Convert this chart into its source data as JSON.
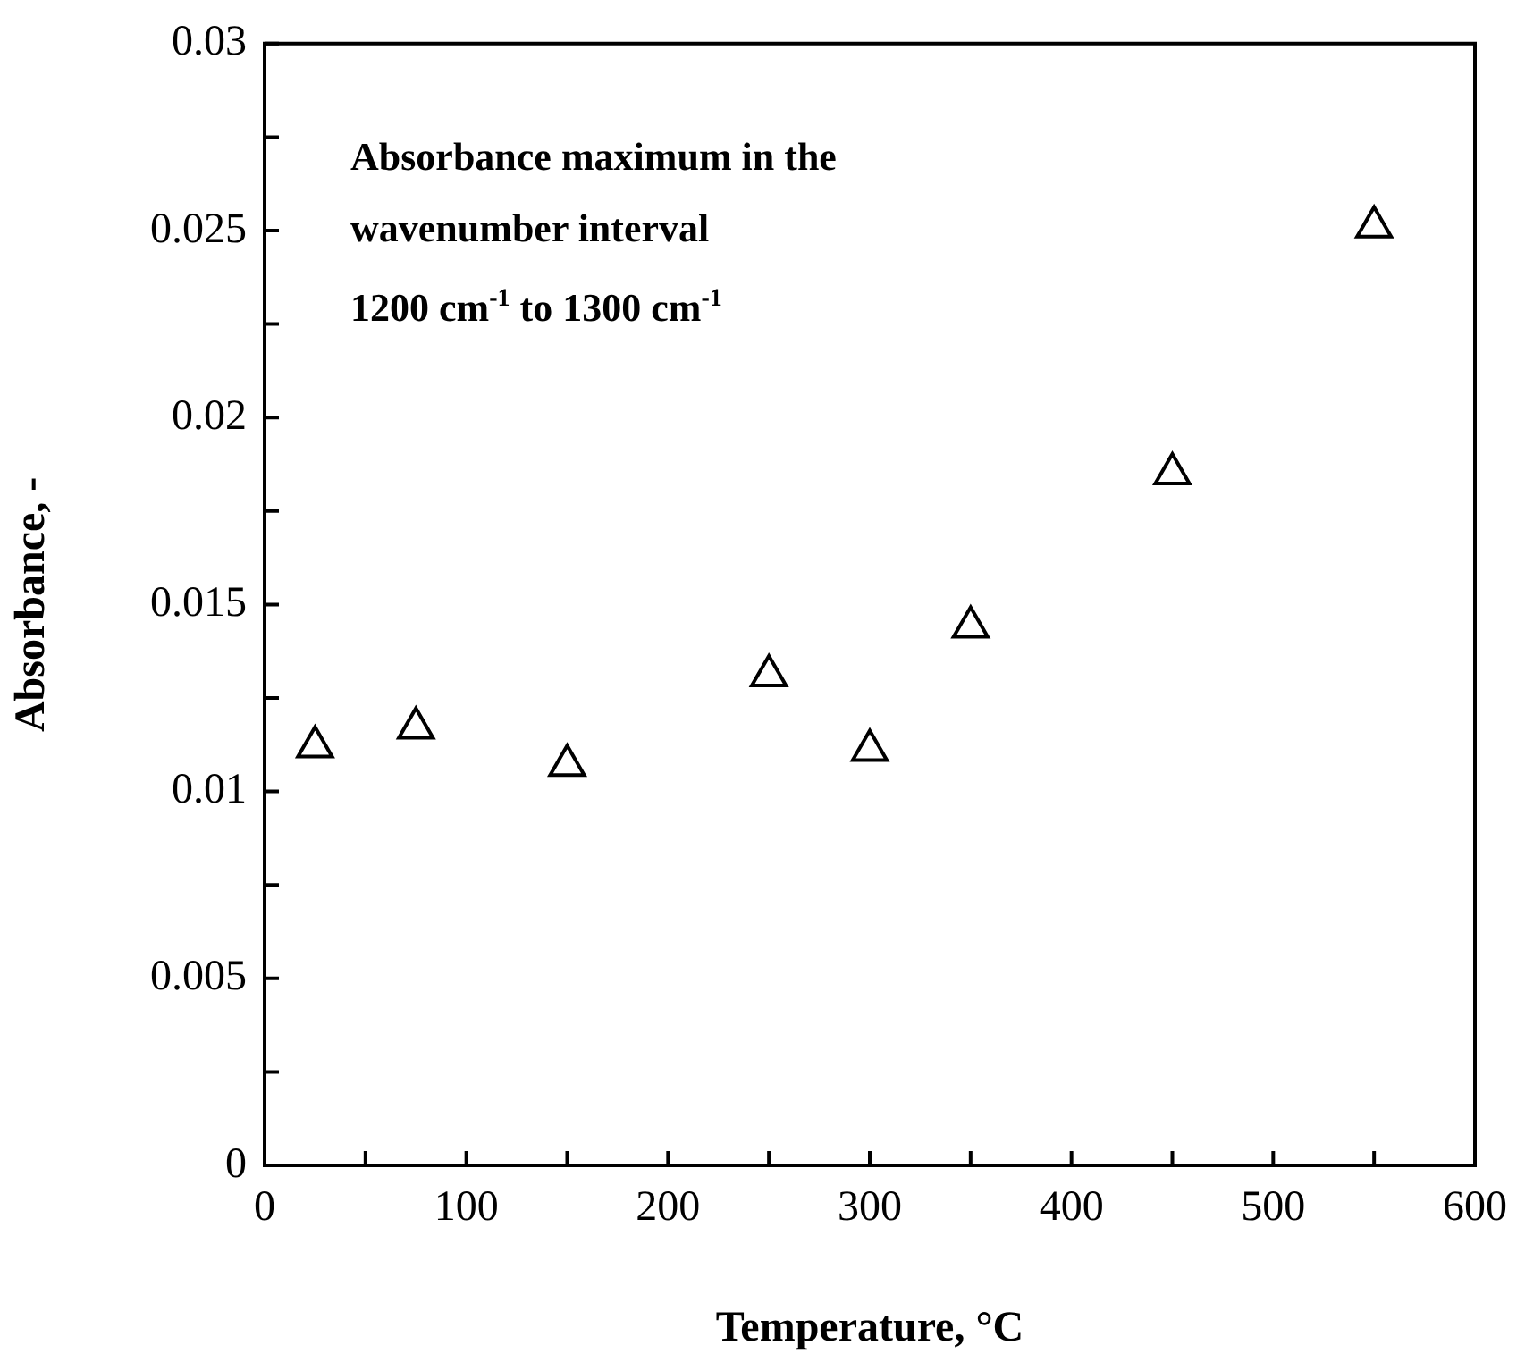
{
  "chart_data": {
    "type": "scatter",
    "xlabel": "Temperature, °C",
    "ylabel": "Absorbance, -",
    "annotations": [
      "Absorbance maximum in the",
      "wavenumber interval",
      "1200 cm$^{-1}$ to 1300 cm$^{-1}$"
    ],
    "x": [
      25,
      75,
      150,
      250,
      300,
      350,
      450,
      550
    ],
    "values": [
      0.0112,
      0.0117,
      0.0107,
      0.0131,
      0.0111,
      0.0144,
      0.0185,
      0.0251
    ],
    "color": "#000000",
    "marker": "triangle",
    "xlim": [
      0,
      600
    ],
    "xticks": [
      0,
      {
        "value": 50,
        "label": null
      },
      100,
      {
        "value": 150,
        "label": null
      },
      200,
      {
        "value": 250,
        "label": null
      },
      300,
      {
        "value": 350,
        "label": null
      },
      400,
      {
        "value": 450,
        "label": null
      },
      500,
      {
        "value": 550,
        "label": null
      },
      600
    ],
    "ylim": [
      0,
      0.03
    ],
    "yticks": [
      0,
      {
        "value": 0.0025,
        "label": null
      },
      0.005,
      {
        "value": 0.0075,
        "label": null
      },
      0.01,
      {
        "value": 0.0125,
        "label": null
      },
      0.015,
      {
        "value": 0.0175,
        "label": null
      },
      0.02,
      {
        "value": 0.0225,
        "label": null
      },
      0.025,
      {
        "value": 0.0275,
        "label": null
      },
      0.03
    ],
    "grid": false,
    "legend": false
  }
}
